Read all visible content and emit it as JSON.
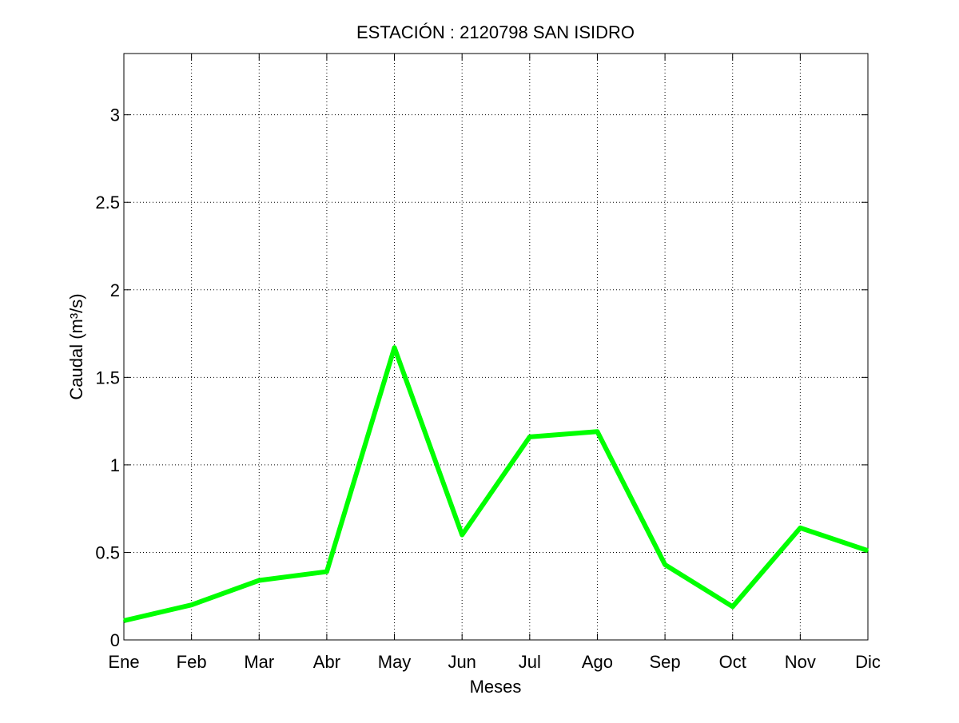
{
  "chart_data": {
    "type": "line",
    "title": "ESTACIÓN :  2120798  SAN ISIDRO",
    "xlabel": "Meses",
    "ylabel": "Caudal (m³/s)",
    "categories": [
      "Ene",
      "Feb",
      "Mar",
      "Abr",
      "May",
      "Jun",
      "Jul",
      "Ago",
      "Sep",
      "Oct",
      "Nov",
      "Dic"
    ],
    "series": [
      {
        "values": [
          0.11,
          0.2,
          0.34,
          0.39,
          1.67,
          0.6,
          1.16,
          1.19,
          0.43,
          0.19,
          0.64,
          0.51
        ],
        "color": "#00ff00"
      }
    ],
    "ylim": [
      0,
      3.35
    ],
    "yticks": [
      0,
      0.5,
      1,
      1.5,
      2,
      2.5,
      3
    ],
    "ytick_labels": [
      "0",
      "0.5",
      "1",
      "1.5",
      "2",
      "2.5",
      "3"
    ],
    "grid": true,
    "grid_style": "dotted"
  }
}
